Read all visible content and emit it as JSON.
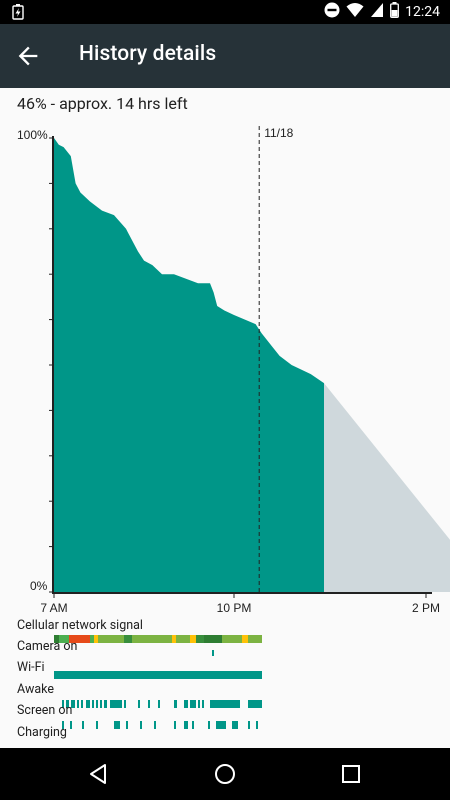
{
  "status_bar": {
    "time": "12:24",
    "icons": [
      "battery-charging-icon",
      "do-not-disturb-icon",
      "wifi-icon",
      "cellular-icon",
      "battery-icon"
    ]
  },
  "app_bar": {
    "title": "History details",
    "back_icon": "arrow-back-icon"
  },
  "summary": "46% - approx. 14 hrs left",
  "colors": {
    "teal": "#009688",
    "projection": "#cfd8dc",
    "appbar": "#263238"
  },
  "chart_data": {
    "type": "area",
    "title": "",
    "xlabel": "",
    "ylabel": "",
    "ylim": [
      0,
      100
    ],
    "y_tick_labels": [
      "100%",
      "0%"
    ],
    "x_tick_labels": [
      "7 AM",
      "10 PM",
      "2 PM"
    ],
    "date_marker": "11/18",
    "series": [
      {
        "values_hours_pct": [
          [
            0,
            100
          ],
          [
            0.4,
            98.5
          ],
          [
            0.8,
            98
          ],
          [
            1.4,
            96
          ],
          [
            1.6,
            93
          ],
          [
            1.8,
            90
          ],
          [
            2.2,
            88
          ],
          [
            3,
            86
          ],
          [
            4,
            84
          ],
          [
            5,
            83
          ],
          [
            6,
            80
          ],
          [
            7,
            75
          ],
          [
            7.5,
            73
          ],
          [
            8.2,
            72
          ],
          [
            9,
            70
          ],
          [
            10,
            70
          ],
          [
            11,
            69
          ],
          [
            12,
            68
          ],
          [
            13,
            68
          ],
          [
            13.3,
            66
          ],
          [
            13.6,
            63
          ],
          [
            14.2,
            62
          ],
          [
            15,
            61
          ],
          [
            16.8,
            59
          ],
          [
            17.3,
            57
          ],
          [
            18.2,
            54
          ],
          [
            18.8,
            52
          ],
          [
            19.8,
            50
          ],
          [
            21.4,
            48
          ],
          [
            22.5,
            46
          ]
        ]
      }
    ],
    "projection": {
      "from_hours": 22.5,
      "from_pct": 46,
      "to_hours": 36.5,
      "to_pct": 0
    }
  },
  "timeline": {
    "rows": [
      {
        "label": "Cellular network signal"
      },
      {
        "label": "Camera on"
      },
      {
        "label": "Wi-Fi"
      },
      {
        "label": "Awake"
      },
      {
        "label": "Screen on"
      },
      {
        "label": "Charging"
      }
    ]
  },
  "nav_bar": {
    "icons": [
      "back-triangle-icon",
      "home-circle-icon",
      "recents-square-icon"
    ]
  }
}
